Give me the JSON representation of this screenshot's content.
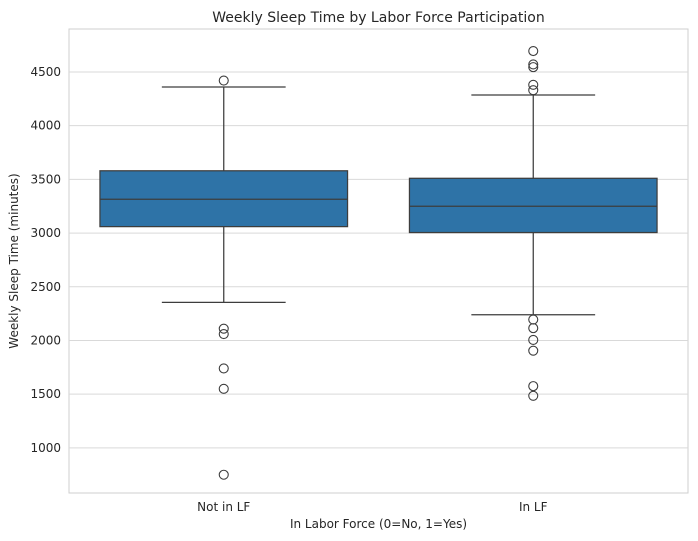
{
  "chart_data": {
    "type": "box",
    "title": "Weekly Sleep Time by Labor Force Participation",
    "xlabel": "In Labor Force (0=No, 1=Yes)",
    "ylabel": "Weekly Sleep Time (minutes)",
    "ylim": [
      580,
      4900
    ],
    "yticks": [
      1000,
      1500,
      2000,
      2500,
      3000,
      3500,
      4000,
      4500
    ],
    "grid": "y",
    "box_color": "#2e73a7",
    "categories": [
      "Not in LF",
      "In LF"
    ],
    "boxes": [
      {
        "category": "Not in LF",
        "whisker_low": 2355,
        "q1": 3060,
        "median": 3315,
        "q3": 3580,
        "whisker_high": 4360,
        "outliers": [
          4420,
          2110,
          2060,
          1740,
          1550,
          750
        ]
      },
      {
        "category": "In LF",
        "whisker_low": 2240,
        "q1": 3005,
        "median": 3250,
        "q3": 3510,
        "whisker_high": 4285,
        "outliers": [
          4695,
          4570,
          4545,
          4380,
          4330,
          2195,
          2115,
          2005,
          1905,
          1575,
          1485
        ]
      }
    ]
  }
}
